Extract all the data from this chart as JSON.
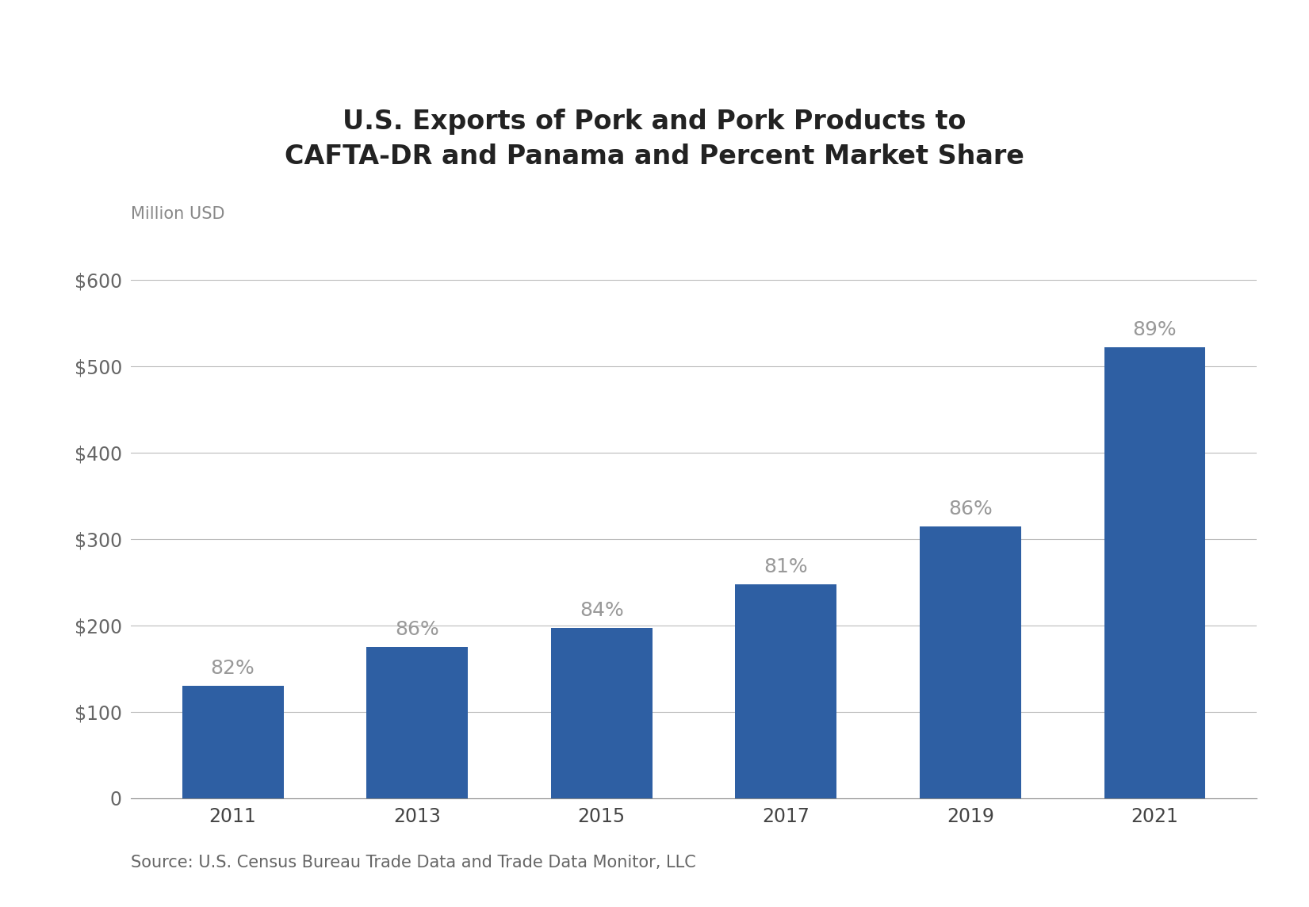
{
  "title_line1": "U.S. Exports of Pork and Pork Products to",
  "title_line2": "CAFTA-DR and Panama and Percent Market Share",
  "ylabel": "Million USD",
  "categories": [
    "2011",
    "2013",
    "2015",
    "2017",
    "2019",
    "2021"
  ],
  "values": [
    130,
    175,
    197,
    248,
    315,
    522
  ],
  "pct_labels": [
    "82%",
    "86%",
    "84%",
    "81%",
    "86%",
    "89%"
  ],
  "bar_color": "#2E5FA3",
  "ylim": [
    0,
    630
  ],
  "yticks": [
    0,
    100,
    200,
    300,
    400,
    500,
    600
  ],
  "ytick_labels": [
    "0",
    "$100",
    "$200",
    "$300",
    "$400",
    "$500",
    "$600"
  ],
  "source_text": "Source: U.S. Census Bureau Trade Data and Trade Data Monitor, LLC",
  "title_fontsize": 24,
  "label_fontsize": 15,
  "tick_fontsize": 17,
  "source_fontsize": 15,
  "pct_fontsize": 18,
  "background_color": "#FFFFFF",
  "grid_color": "#BBBBBB",
  "bar_width": 0.55
}
